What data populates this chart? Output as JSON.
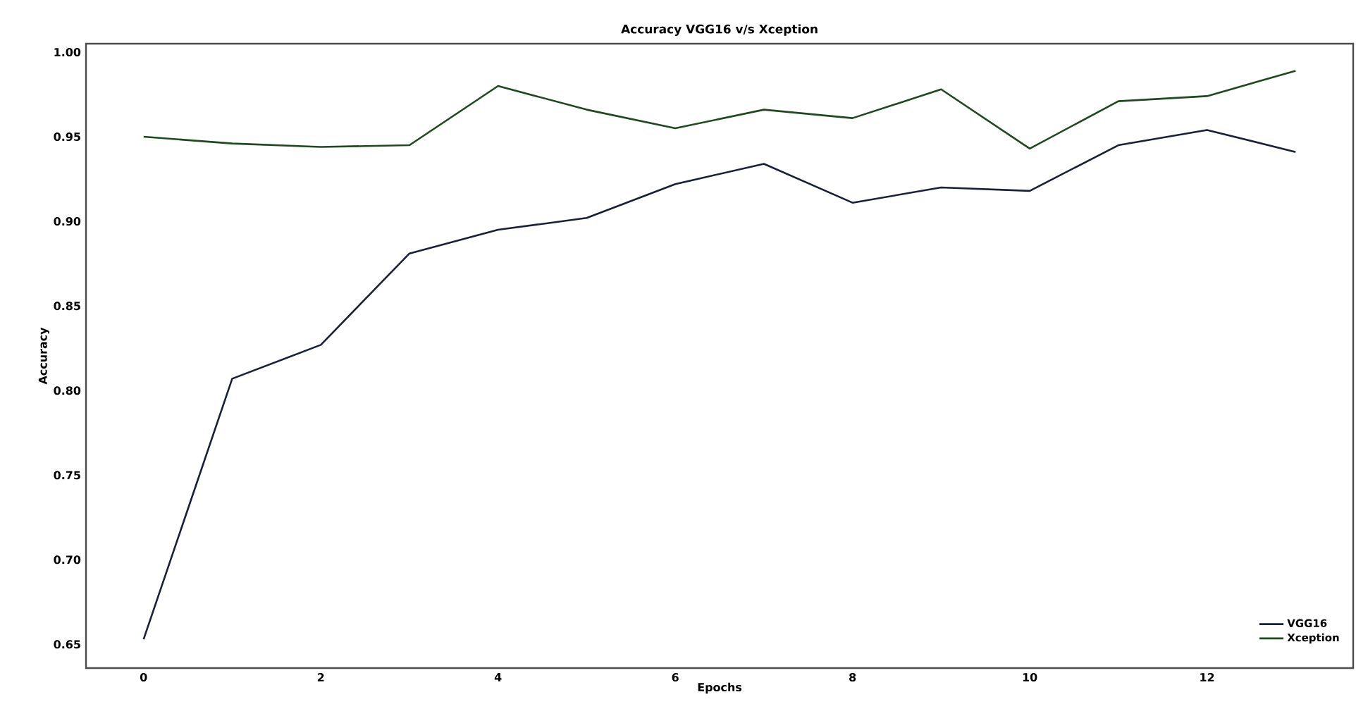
{
  "chart_data": {
    "type": "line",
    "title": "Accuracy VGG16 v/s Xception",
    "xlabel": "Epochs",
    "ylabel": "Accuracy",
    "x": [
      0,
      1,
      2,
      3,
      4,
      5,
      6,
      7,
      8,
      9,
      10,
      11,
      12,
      13
    ],
    "series": [
      {
        "name": "VGG16",
        "color": "#1a1f3a",
        "values": [
          0.653,
          0.807,
          0.827,
          0.881,
          0.895,
          0.902,
          0.922,
          0.934,
          0.911,
          0.92,
          0.918,
          0.945,
          0.954,
          0.941
        ]
      },
      {
        "name": "Xception",
        "color": "#1f4a1f",
        "values": [
          0.95,
          0.946,
          0.944,
          0.945,
          0.98,
          0.966,
          0.955,
          0.966,
          0.961,
          0.978,
          0.943,
          0.971,
          0.974,
          0.989
        ]
      }
    ],
    "xlim": [
      -0.65,
      13.65
    ],
    "ylim": [
      0.636,
      1.005
    ],
    "xticks": [
      0,
      2,
      4,
      6,
      8,
      10,
      12
    ],
    "yticks": [
      {
        "value": 0.65,
        "label": "0.65"
      },
      {
        "value": 0.7,
        "label": "0.70"
      },
      {
        "value": 0.75,
        "label": "0.75"
      },
      {
        "value": 0.8,
        "label": "0.80"
      },
      {
        "value": 0.85,
        "label": "0.85"
      },
      {
        "value": 0.9,
        "label": "0.90"
      },
      {
        "value": 0.95,
        "label": "0.95"
      },
      {
        "value": 1.0,
        "label": "1.00"
      }
    ],
    "legend": "bottom right",
    "grid": false,
    "marker": "none",
    "line_style": "solid"
  }
}
